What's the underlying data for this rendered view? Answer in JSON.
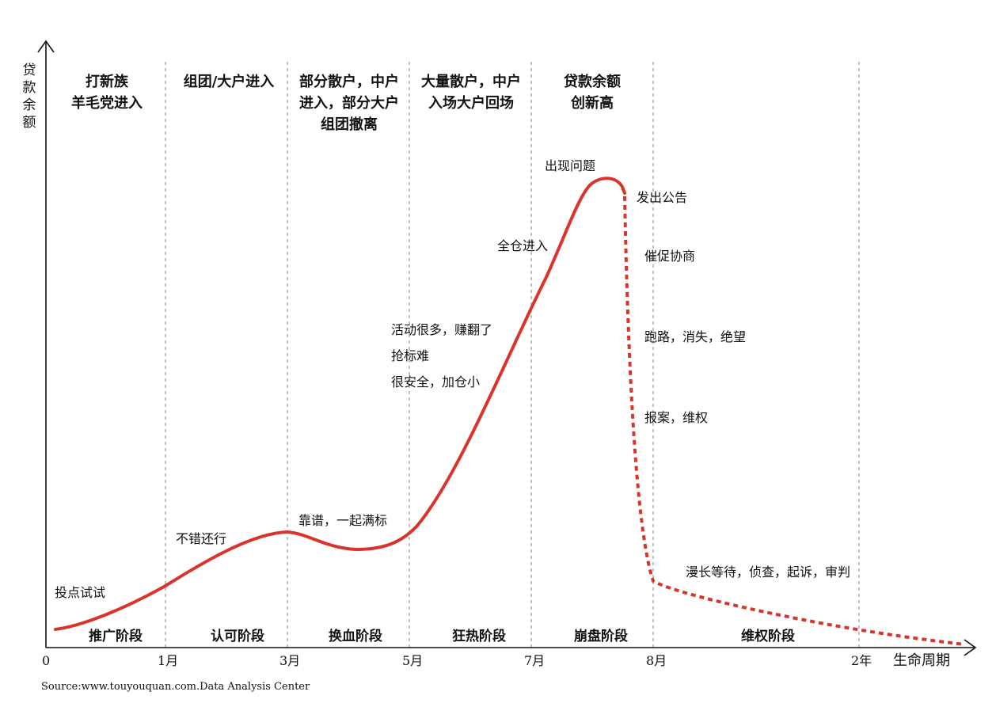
{
  "axis": {
    "y_label": "贷款余额",
    "x_label": "生命周期",
    "ticks": [
      "0",
      "1月",
      "3月",
      "5月",
      "7月",
      "8月",
      "2年"
    ]
  },
  "headers": [
    "打新族\n羊毛党进入",
    "组团/大户进入",
    "部分散户，中户\n进入，部分大户\n组团撤离",
    "大量散户，中户\n入场大户回场",
    "贷款余额\n创新高"
  ],
  "stages": [
    "推广阶段",
    "认可阶段",
    "换血阶段",
    "狂热阶段",
    "崩盘阶段",
    "维权阶段"
  ],
  "annotations": {
    "a1": "投点试试",
    "a2": "不错还行",
    "a3": "靠谱，一起满标",
    "a4": "活动很多，赚翻了",
    "a5": "抢标难",
    "a6": "很安全，加仓小",
    "a7": "全仓进入",
    "a8": "出现问题",
    "a9": "发出公告",
    "a10": "催促协商",
    "a11": "跑路，消失，绝望",
    "a12": "报案，维权",
    "a13": "漫长等待，侦查，起诉，审判"
  },
  "source": "Source:www.touyouquan.com.Data Analysis Center",
  "colors": {
    "curve": "#d9342b",
    "axis": "#111111",
    "divider": "#999999"
  }
}
